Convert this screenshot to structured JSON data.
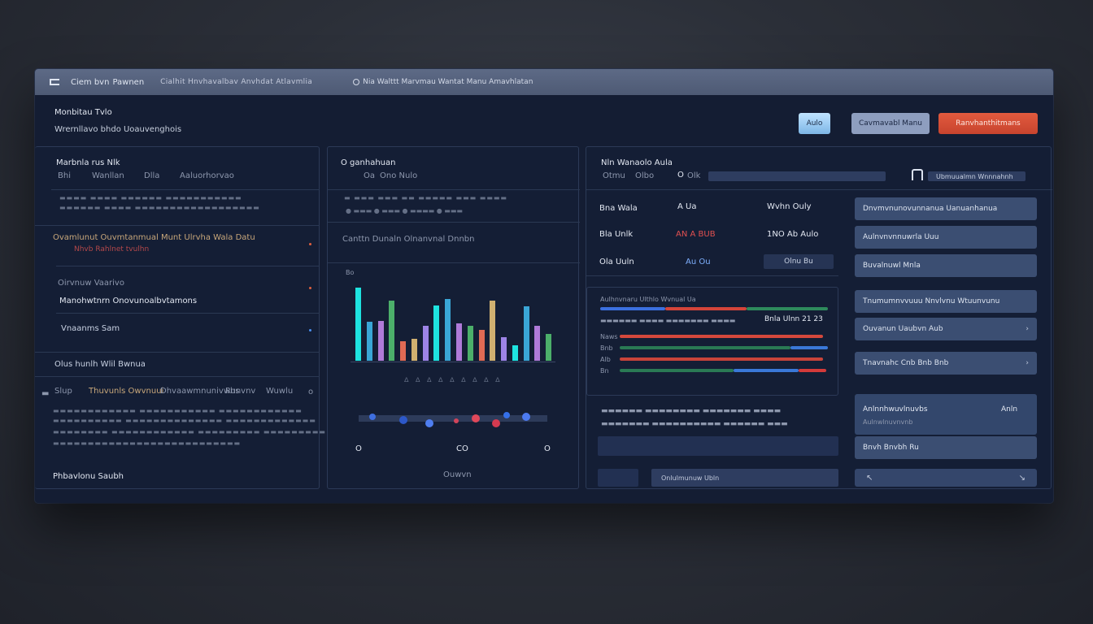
{
  "titlebar": {
    "app_name": "Ciem bvn",
    "app_suffix": "Pawnen",
    "breadcrumb": "Cialhit Hnvhavalbav Anvhdat Atlavmlia",
    "search_text": "Nia Walttt Marvmau Wantat Manu Amavhlatan"
  },
  "header": {
    "title": "Monbitau Tvlo",
    "subtitle": "Wrernllavo bhdo Uoauvenghois"
  },
  "buttons": {
    "small": "Aulo",
    "secondary": "Cavmavabl Manu",
    "primary": "Ranvhanthitmans"
  },
  "left_panel": {
    "heading": "Marbnla rus Nlk",
    "tabs": [
      "Bhi",
      "Wanllan",
      "Dlla",
      "Aaluorhorvao"
    ],
    "row1": "Ovamlunut Ouvmtanmual Munt Ulrvha Wala Datu",
    "row1_sub": "Nhvb Rahlnet tvulhn",
    "row2_title": "Oirvnuw Vaarivo",
    "row2": "Manohwtnrn Onovunoalbvtamons",
    "row3": "Vnaanms Sam",
    "row4": "Olus hunlh Wlil Bwnua",
    "filters": [
      "Slup",
      "Thuvunls Owvnuui",
      "Dhvaawmnunivwhs",
      "Runvnv",
      "Wuwlu"
    ],
    "footer": "Phbavlonu Saubh"
  },
  "center_panel": {
    "heading": "O ganhahuan",
    "tabs": [
      "Oa",
      "Ono Nulo"
    ],
    "legend_label": "Canttn Dunaln Olnanvnal Dnnbn",
    "axis_left": "Bo",
    "chart_bottom_labels": [
      "O",
      "CO",
      "O"
    ],
    "footer_label": "Ouwvn"
  },
  "right_panel": {
    "heading": "Nln Wanaolo Aula",
    "tabs": [
      "Otmu",
      "Olbo",
      "O",
      "Olk"
    ],
    "search_label": "Ubmuualmn Wnnnahnh",
    "summary": [
      {
        "label": "Bna Wala",
        "mid": "A Ua",
        "right": "Wvhn Ouly"
      },
      {
        "label": "Bla Unlk",
        "mid": "AN A BUB",
        "right": "1NO Ab Aulo"
      },
      {
        "label": "Ola Uuln",
        "mid": "Au Ou",
        "right": "Olnu Bu"
      }
    ],
    "selectors": [
      "Dnvmvnunovunnanua Uanuanhanua",
      "Aulnvnvnnuwrla Uuu",
      "Buvalnuwl Mnla",
      "Tnumumnvvuuu Nnvlvnu Wtuunvunu",
      "Ouvanun Uaubvn Aub",
      "Tnavnahc Cnb Bnb Bnb"
    ],
    "detail": {
      "title": "Anlnnhwuvlnuvbs",
      "sub": "Aulnwlnuvnvnb",
      "value": "Anln",
      "row2": "Bnvh Bnvbh Ru"
    },
    "timeline_labels": [
      "Naws",
      "Bnb",
      "Alb",
      "Bn"
    ],
    "timeline_header": "Aulhnvnaru Ulthlo Wvnual Ua",
    "timeline_value": "Bnla Ulnn 21 23",
    "bottom_right_label": "Onlulmunuw Ubln"
  },
  "chart_data": {
    "type": "bar",
    "series": [
      {
        "values": [
          95,
          50,
          52,
          78,
          25,
          28,
          45,
          72,
          80,
          48,
          45,
          40,
          78,
          30,
          20,
          70,
          45,
          35
        ]
      }
    ],
    "colors": [
      "#1ee3e0",
      "#3aa6d6",
      "#b07ad8",
      "#4caf6a",
      "#e06a54",
      "#d0b070",
      "#9d84e6"
    ]
  }
}
